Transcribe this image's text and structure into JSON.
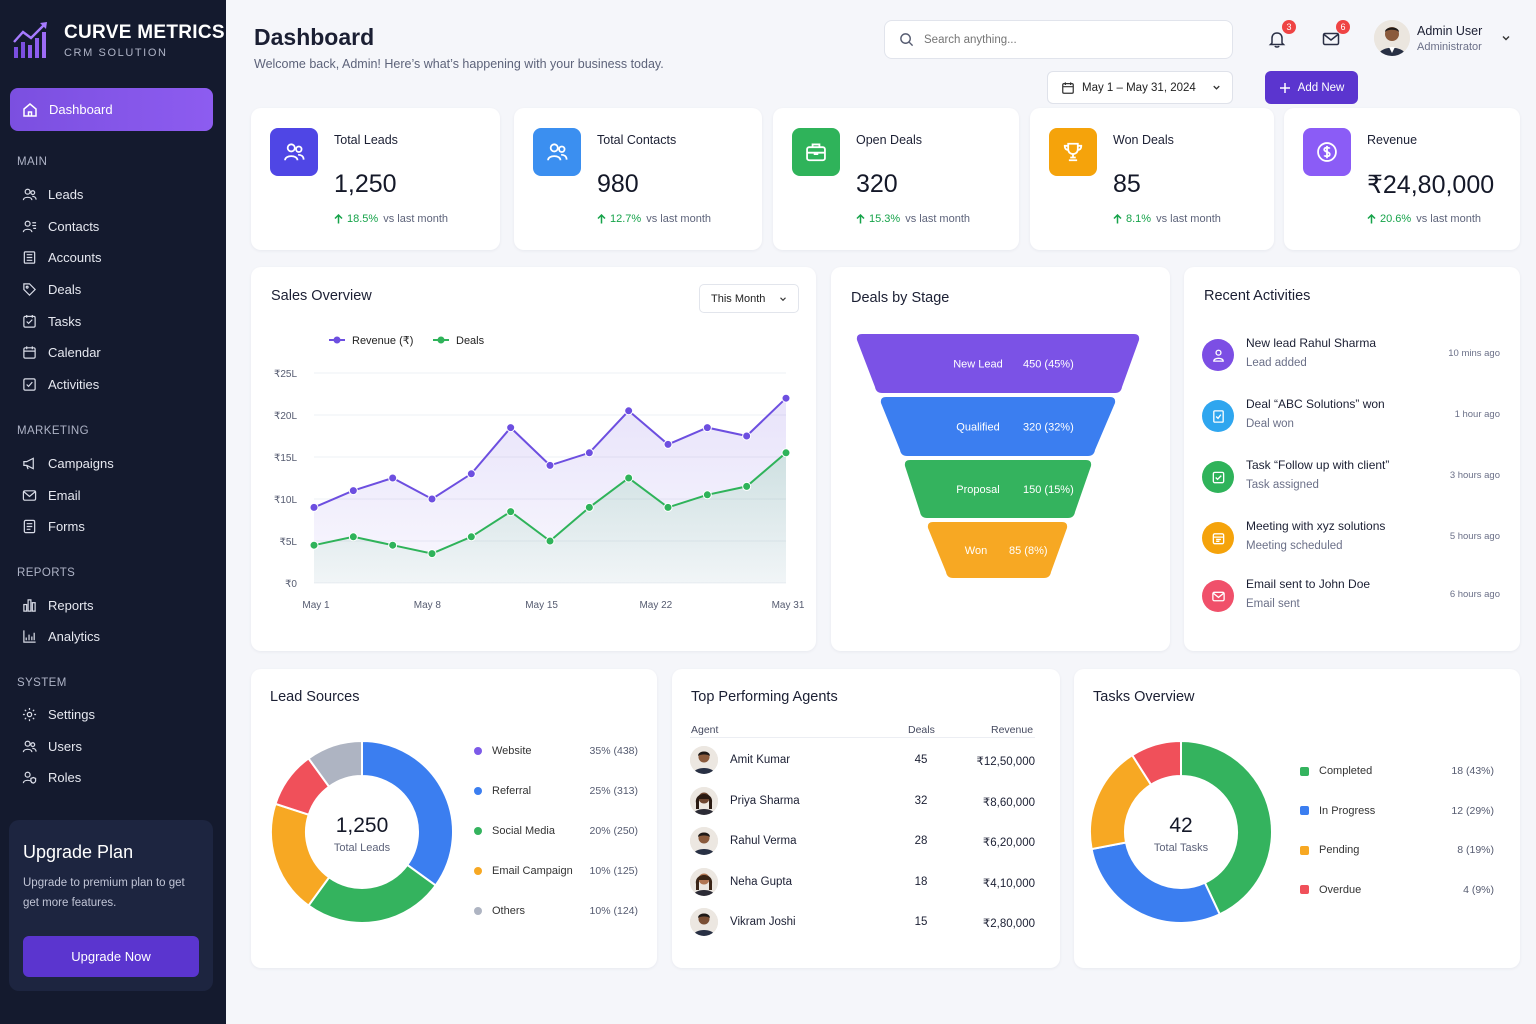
{
  "brand": {
    "name": "CURVE METRICS",
    "subtitle": "CRM SOLUTION"
  },
  "sidebar": {
    "active": "Dashboard",
    "sections": [
      {
        "title": "MAIN",
        "items": [
          "Leads",
          "Contacts",
          "Accounts",
          "Deals",
          "Tasks",
          "Calendar",
          "Activities"
        ]
      },
      {
        "title": "MARKETING",
        "items": [
          "Campaigns",
          "Email",
          "Forms"
        ]
      },
      {
        "title": "REPORTS",
        "items": [
          "Reports",
          "Analytics"
        ]
      },
      {
        "title": "SYSTEM",
        "items": [
          "Settings",
          "Users",
          "Roles"
        ]
      }
    ],
    "upgrade": {
      "title": "Upgrade Plan",
      "text": "Upgrade to premium plan to get get more features.",
      "button": "Upgrade Now"
    }
  },
  "header": {
    "title": "Dashboard",
    "subtitle": "Welcome back, Admin! Here’s what’s happening with your business today.",
    "search_placeholder": "Search anything...",
    "notifications": "3",
    "messages": "6",
    "user_name": "Admin User",
    "user_role": "Administrator",
    "date_range": "May 1 – May 31, 2024",
    "add_new": "Add New"
  },
  "stats": [
    {
      "label": "Total Leads",
      "value": "1,250",
      "change": "18.5%",
      "suffix": "vs last month",
      "color": "#4f46e5",
      "icon": "users-icon"
    },
    {
      "label": "Total Contacts",
      "value": "980",
      "change": "12.7%",
      "suffix": "vs last month",
      "color": "#3b8ff0",
      "icon": "contacts-icon"
    },
    {
      "label": "Open Deals",
      "value": "320",
      "change": "15.3%",
      "suffix": "vs last month",
      "color": "#2fb35a",
      "icon": "briefcase-icon"
    },
    {
      "label": "Won Deals",
      "value": "85",
      "change": "8.1%",
      "suffix": "vs last month",
      "color": "#f5a30b",
      "icon": "trophy-icon"
    },
    {
      "label": "Revenue",
      "value": "₹24,80,000",
      "change": "20.6%",
      "suffix": "vs last month",
      "color": "#8b5cf6",
      "icon": "dollar-icon"
    }
  ],
  "sales_overview": {
    "title": "Sales Overview",
    "period": "This Month",
    "chart_data": {
      "type": "line",
      "x_ticks": [
        "May 1",
        "May 8",
        "May 15",
        "May 22",
        "May 31"
      ],
      "y_ticks": [
        "₹0",
        "₹5L",
        "₹10L",
        "₹15L",
        "₹20L",
        "₹25L"
      ],
      "ylim": [
        0,
        25
      ],
      "series": [
        {
          "name": "Revenue (₹)",
          "color": "#6d4fe0",
          "values": [
            9,
            11,
            12.5,
            10,
            13,
            18.5,
            14,
            15.5,
            20.5,
            16.5,
            18.5,
            17.5,
            22
          ]
        },
        {
          "name": "Deals",
          "color": "#2fb35a",
          "values": [
            4.5,
            5.5,
            4.5,
            3.5,
            5.5,
            8.5,
            5,
            9,
            12.5,
            9,
            10.5,
            11.5,
            15.5
          ]
        }
      ],
      "legend": "top-left",
      "grid": true
    }
  },
  "deals_by_stage": {
    "title": "Deals by Stage",
    "chart_data": {
      "type": "funnel",
      "stages": [
        {
          "name": "New Lead",
          "value": "450 (45%)",
          "color": "#7b52e6"
        },
        {
          "name": "Qualified",
          "value": "320 (32%)",
          "color": "#3b7ef0"
        },
        {
          "name": "Proposal",
          "value": "150 (15%)",
          "color": "#34b35e"
        },
        {
          "name": "Won",
          "value": "85 (8%)",
          "color": "#f7a823"
        }
      ]
    }
  },
  "recent_activities": {
    "title": "Recent Activities",
    "items": [
      {
        "title": "New lead Rahul Sharma",
        "sub": "Lead added",
        "time": "10 mins ago",
        "color": "#7c4ee4",
        "icon": "user-add-icon"
      },
      {
        "title": "Deal “ABC Solutions” won",
        "sub": "Deal won",
        "time": "1 hour ago",
        "color": "#2fa6ef",
        "icon": "check-doc-icon"
      },
      {
        "title": "Task “Follow up with client”",
        "sub": "Task assigned",
        "time": "3 hours ago",
        "color": "#2fb35a",
        "icon": "task-icon"
      },
      {
        "title": "Meeting with xyz solutions",
        "sub": "Meeting scheduled",
        "time": "5 hours ago",
        "color": "#f5a30b",
        "icon": "calendar-icon"
      },
      {
        "title": "Email sent to John Doe",
        "sub": "Email sent",
        "time": "6 hours ago",
        "color": "#f0506a",
        "icon": "mail-icon"
      }
    ]
  },
  "lead_sources": {
    "title": "Lead Sources",
    "center_value": "1,250",
    "center_label": "Total Leads",
    "chart_data": {
      "type": "pie",
      "slices": [
        {
          "name": "Website",
          "label": "35% (438)",
          "value": 35,
          "color": "#3b7ef0"
        },
        {
          "name": "Referral",
          "label": "25% (313)",
          "value": 25,
          "color": "#34b35e"
        },
        {
          "name": "Social Media",
          "label": "20% (250)",
          "value": 20,
          "color": "#f7a823"
        },
        {
          "name": "Email Campaign",
          "label": "10% (125)",
          "value": 10,
          "color": "#f0505a"
        },
        {
          "name": "Others",
          "label": "10% (124)",
          "value": 10,
          "color": "#aeb4c2"
        }
      ]
    },
    "legend_colors": [
      "#7c5ae8",
      "#3b7ef0",
      "#34b35e",
      "#f7a823",
      "#aeb4c2"
    ]
  },
  "top_agents": {
    "title": "Top Performing Agents",
    "columns": {
      "agent": "Agent",
      "deals": "Deals",
      "revenue": "Revenue"
    },
    "rows": [
      {
        "name": "Amit Kumar",
        "deals": "45",
        "revenue": "₹12,50,000"
      },
      {
        "name": "Priya Sharma",
        "deals": "32",
        "revenue": "₹8,60,000"
      },
      {
        "name": "Rahul Verma",
        "deals": "28",
        "revenue": "₹6,20,000"
      },
      {
        "name": "Neha Gupta",
        "deals": "18",
        "revenue": "₹4,10,000"
      },
      {
        "name": "Vikram Joshi",
        "deals": "15",
        "revenue": "₹2,80,000"
      }
    ]
  },
  "tasks_overview": {
    "title": "Tasks Overview",
    "center_value": "42",
    "center_label": "Total Tasks",
    "chart_data": {
      "type": "pie",
      "slices": [
        {
          "name": "Completed",
          "label": "18 (43%)",
          "value": 43,
          "color": "#34b35e"
        },
        {
          "name": "In Progress",
          "label": "12 (29%)",
          "value": 29,
          "color": "#3b7ef0"
        },
        {
          "name": "Pending",
          "label": "8 (19%)",
          "value": 19,
          "color": "#f7a823"
        },
        {
          "name": "Overdue",
          "label": "4 (9%)",
          "value": 9,
          "color": "#f0505a"
        }
      ]
    }
  }
}
